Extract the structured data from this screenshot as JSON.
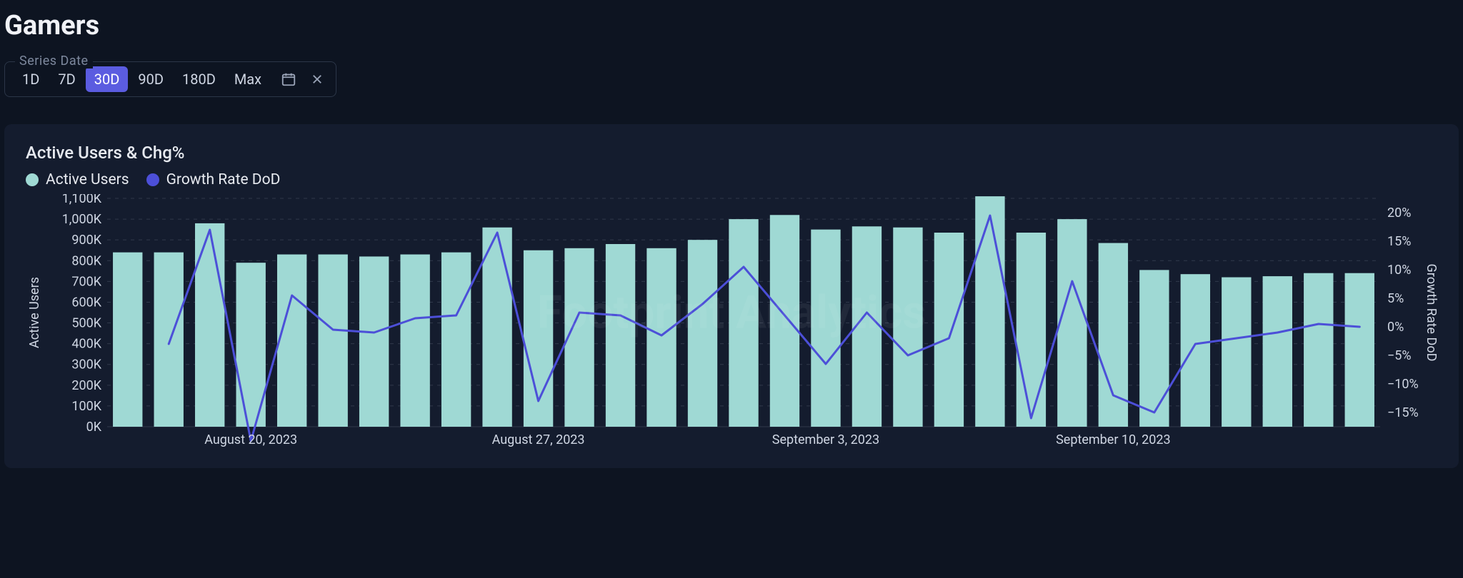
{
  "page": {
    "title": "Gamers"
  },
  "range_selector": {
    "label": "Series Date",
    "options": [
      "1D",
      "7D",
      "30D",
      "90D",
      "180D",
      "Max"
    ],
    "selected_index": 2
  },
  "chart": {
    "type": "bar+line",
    "title": "Active Users & Chg%",
    "watermark": "Footprint Analytics",
    "legend": [
      {
        "label": "Active Users",
        "color": "#9fd9d4",
        "kind": "bar"
      },
      {
        "label": "Growth Rate DoD",
        "color": "#4c4fd8",
        "kind": "line"
      }
    ],
    "colors": {
      "background": "#141c2e",
      "grid": "#30394b",
      "axis_text": "#cfd6e3",
      "bar": "#9fd9d4",
      "line": "#4c4fd8"
    },
    "y_left": {
      "label": "Active Users",
      "min": 0,
      "max": 1100,
      "tick_step": 100,
      "tick_suffix": "K",
      "tick_fontsize": 18,
      "label_fontsize": 18
    },
    "y_right": {
      "label": "Growth Rate DoD",
      "min": -17.5,
      "max": 22.5,
      "ticks": [
        20,
        15,
        10,
        5,
        0,
        -5,
        -10,
        -15
      ],
      "tick_suffix": "%",
      "tick_fontsize": 18,
      "label_fontsize": 18
    },
    "x": {
      "tick_labels": [
        {
          "index": 3,
          "label": "August 20, 2023"
        },
        {
          "index": 10,
          "label": "August 27, 2023"
        },
        {
          "index": 17,
          "label": "September 3, 2023"
        },
        {
          "index": 24,
          "label": "September 10, 2023"
        }
      ],
      "tick_fontsize": 18
    },
    "bars_k": [
      840,
      840,
      980,
      790,
      830,
      830,
      820,
      830,
      840,
      960,
      850,
      860,
      880,
      860,
      900,
      1000,
      1020,
      950,
      965,
      960,
      935,
      1110,
      935,
      1000,
      885,
      755,
      735,
      720,
      725,
      740,
      740
    ],
    "line_pct": [
      null,
      -3.0,
      17.0,
      -20.0,
      5.5,
      -0.5,
      -1.0,
      1.5,
      2.0,
      16.5,
      -13.0,
      2.5,
      2.0,
      -1.5,
      4.0,
      10.5,
      2.0,
      -6.5,
      2.5,
      -5.0,
      -2.0,
      19.5,
      -16.0,
      8.0,
      -12.0,
      -15.0,
      -3.0,
      -2.0,
      -1.0,
      0.5,
      0.0
    ],
    "bar_width_ratio": 0.72,
    "line_width": 3
  }
}
